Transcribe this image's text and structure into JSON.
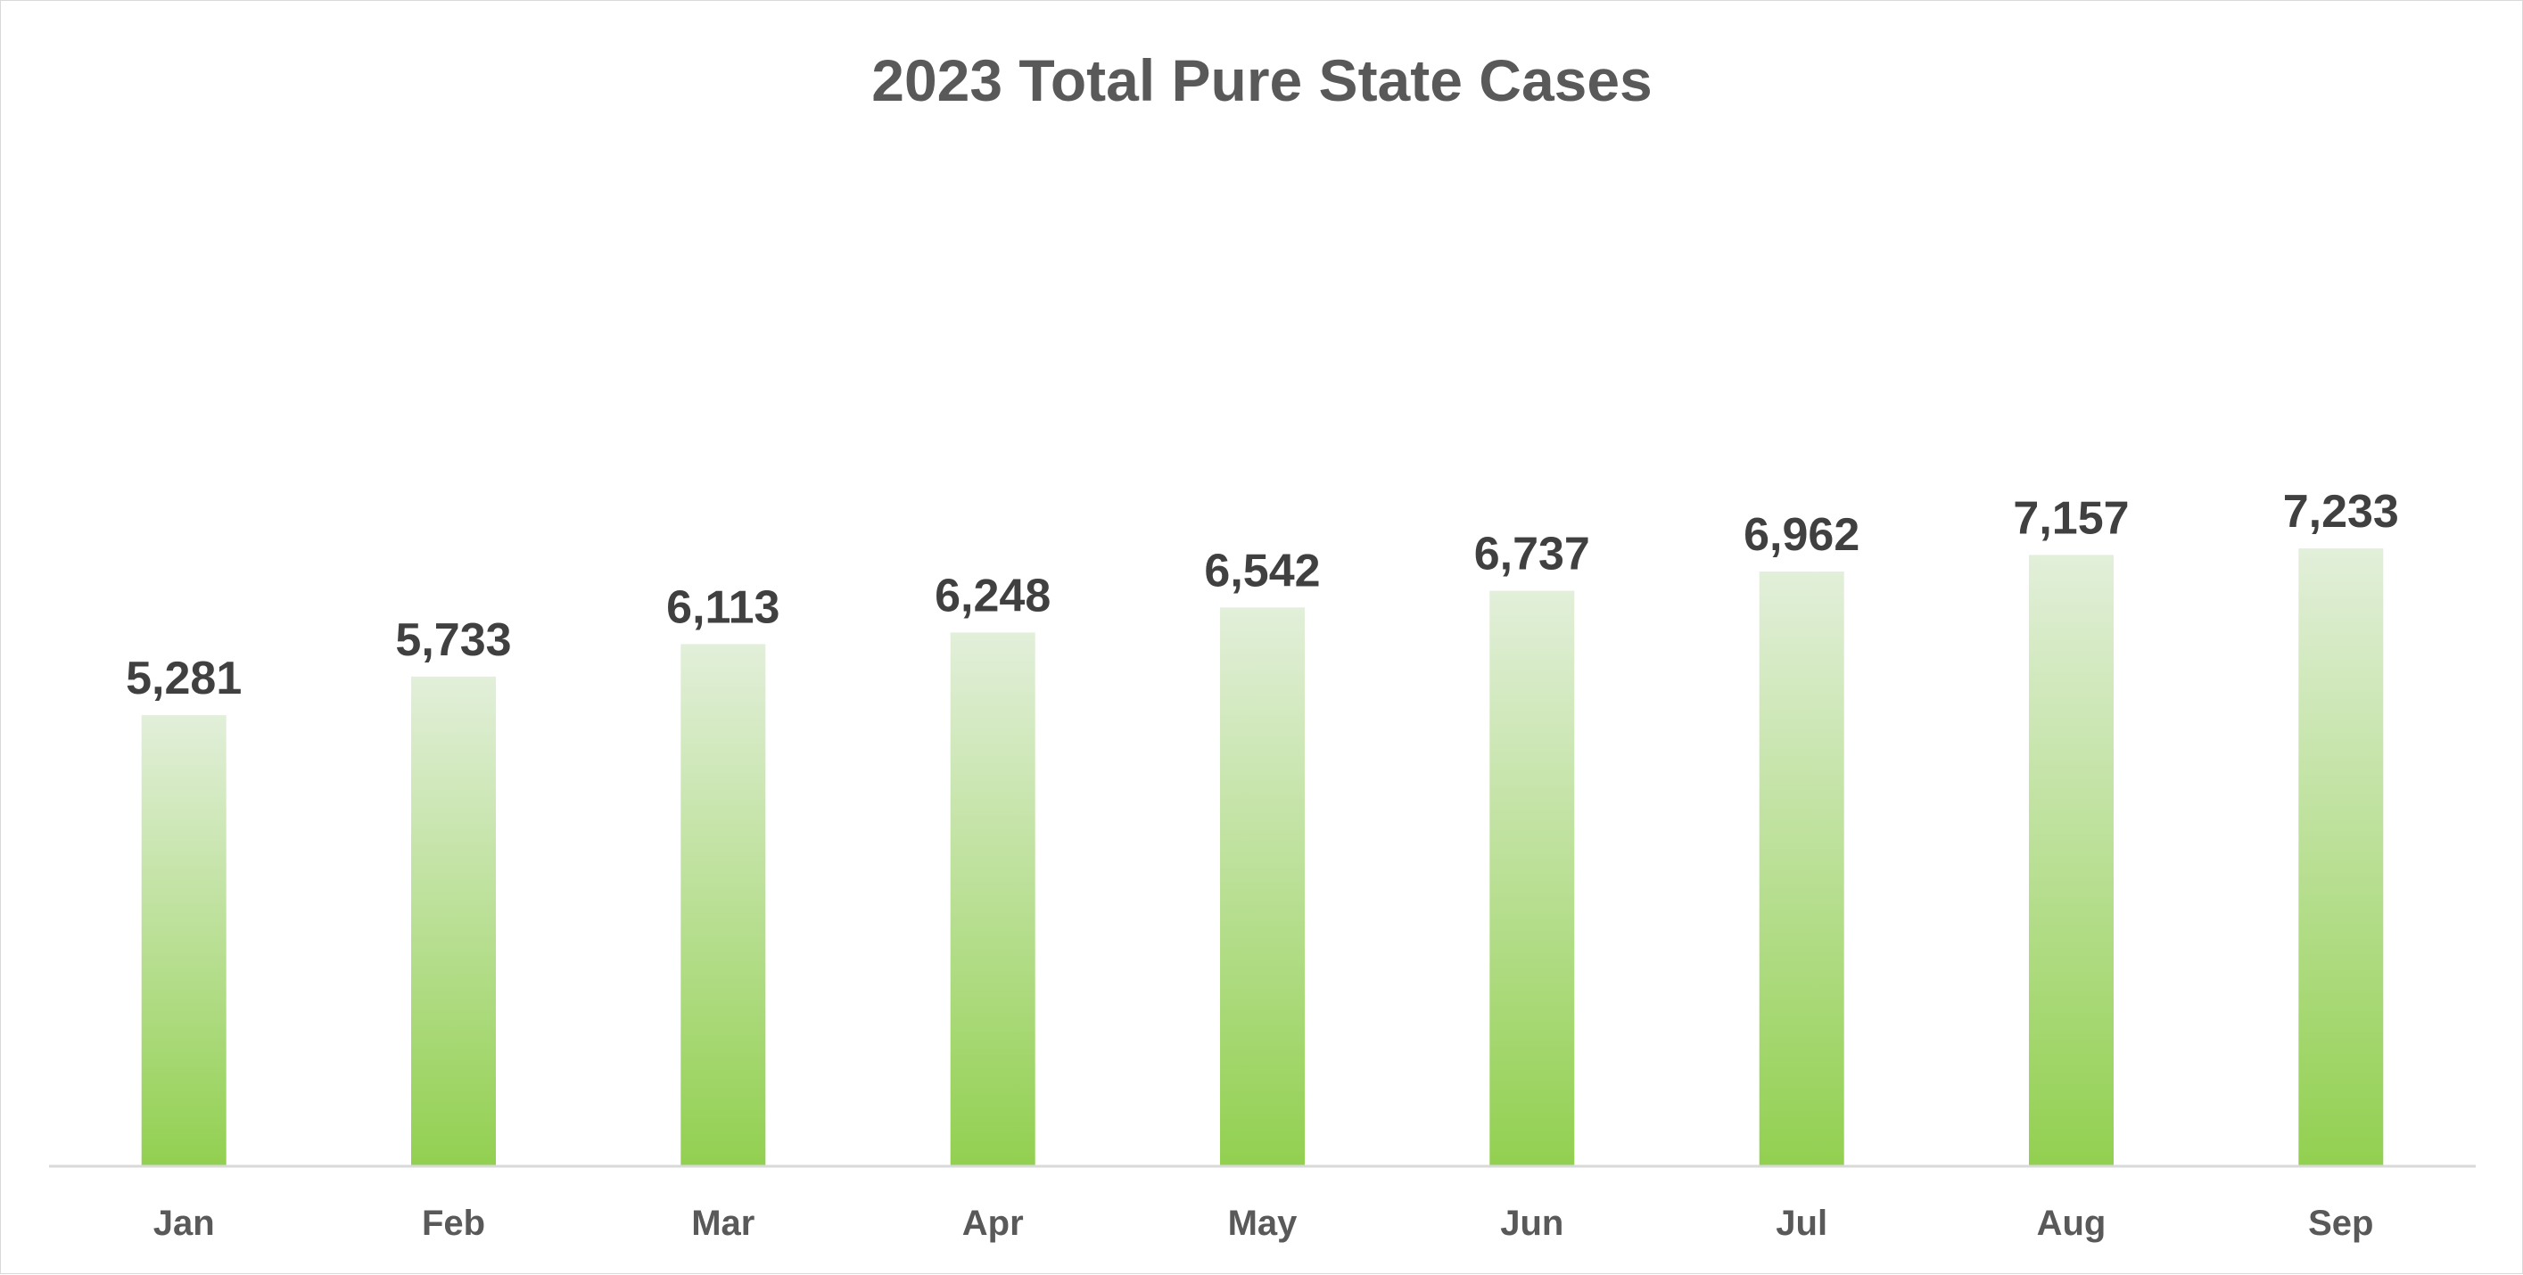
{
  "chart_data": {
    "type": "bar",
    "title": "2023 Total Pure State Cases",
    "categories": [
      "Jan",
      "Feb",
      "Mar",
      "Apr",
      "May",
      "Jun",
      "Jul",
      "Aug",
      "Sep"
    ],
    "values": [
      5281,
      5733,
      6113,
      6248,
      6542,
      6737,
      6962,
      7157,
      7233
    ],
    "value_labels": [
      "5,281",
      "5,733",
      "6,113",
      "6,248",
      "6,542",
      "6,737",
      "6,962",
      "7,157",
      "7,233"
    ],
    "xlabel": "",
    "ylabel": "",
    "ylim": [
      0,
      8000
    ],
    "grid": false,
    "legend": "none",
    "y_axis_visible": false,
    "bar_gradient": {
      "top": "#e2efda",
      "bottom": "#92d050"
    },
    "axis_line_color": "#d9d9d9",
    "title_color": "#595959",
    "label_color": "#404040"
  }
}
